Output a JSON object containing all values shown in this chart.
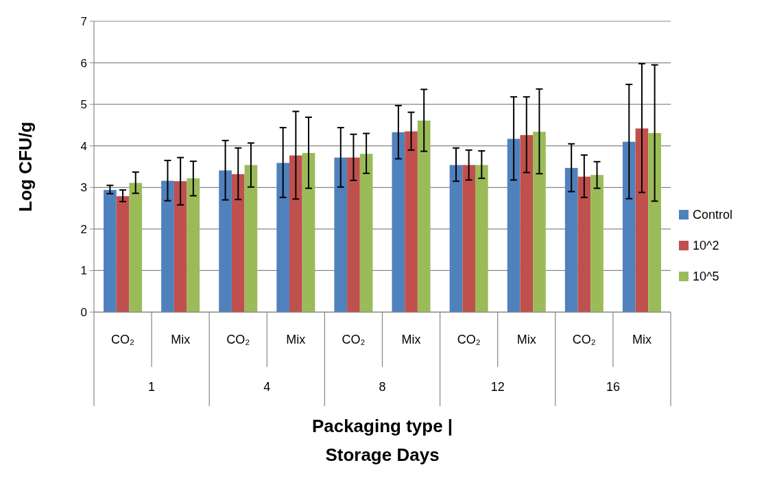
{
  "chart_data": {
    "type": "bar",
    "categories": [
      "CO₂",
      "Mix",
      "CO₂",
      "Mix",
      "CO₂",
      "Mix",
      "CO₂",
      "Mix",
      "CO₂",
      "Mix"
    ],
    "annotations": [
      "1",
      "4",
      "8",
      "12",
      "16"
    ],
    "xlabel": "Packaging type | Storage Days",
    "ylabel": "Log CFU/g",
    "ylim": [
      0,
      7
    ],
    "yticks": [
      0,
      1,
      2,
      3,
      4,
      5,
      6,
      7
    ],
    "grid": "y",
    "legend": "right",
    "series": [
      {
        "name": "Control",
        "color": "#4f81bd",
        "values": [
          2.94,
          3.16,
          3.41,
          3.59,
          3.72,
          4.33,
          3.54,
          4.17,
          3.47,
          4.1
        ],
        "errors": [
          [
            2.85,
            3.05
          ],
          [
            2.68,
            3.65
          ],
          [
            2.7,
            4.13
          ],
          [
            2.76,
            4.44
          ],
          [
            3.01,
            4.44
          ],
          [
            3.69,
            4.97
          ],
          [
            3.15,
            3.95
          ],
          [
            3.18,
            5.18
          ],
          [
            2.9,
            4.05
          ],
          [
            2.73,
            5.48
          ]
        ]
      },
      {
        "name": "10^2",
        "color": "#c0504d",
        "values": [
          2.79,
          3.15,
          3.32,
          3.77,
          3.72,
          4.35,
          3.54,
          4.26,
          3.26,
          4.42
        ],
        "errors": [
          [
            2.66,
            2.94
          ],
          [
            2.58,
            3.72
          ],
          [
            2.71,
            3.95
          ],
          [
            2.72,
            4.83
          ],
          [
            3.17,
            4.28
          ],
          [
            3.9,
            4.81
          ],
          [
            3.18,
            3.9
          ],
          [
            3.36,
            5.18
          ],
          [
            2.76,
            3.78
          ],
          [
            2.88,
            5.98
          ]
        ]
      },
      {
        "name": "10^5",
        "color": "#9bbb59",
        "values": [
          3.11,
          3.22,
          3.54,
          3.83,
          3.81,
          4.61,
          3.54,
          4.34,
          3.3,
          4.31
        ],
        "errors": [
          [
            2.86,
            3.37
          ],
          [
            2.8,
            3.63
          ],
          [
            3.01,
            4.07
          ],
          [
            2.98,
            4.69
          ],
          [
            3.34,
            4.3
          ],
          [
            3.87,
            5.36
          ],
          [
            3.22,
            3.88
          ],
          [
            3.33,
            5.37
          ],
          [
            2.98,
            3.62
          ],
          [
            2.67,
            5.95
          ]
        ]
      }
    ]
  }
}
